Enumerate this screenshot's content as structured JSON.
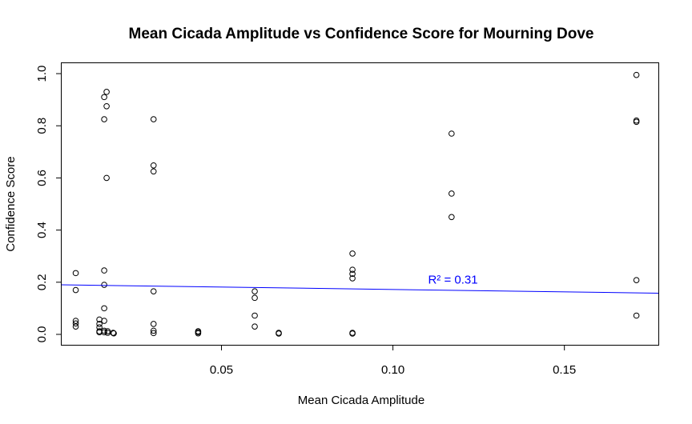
{
  "chart_data": {
    "type": "scatter",
    "title": "Mean Cicada Amplitude vs Confidence Score for Mourning Dove",
    "xlabel": "Mean Cicada Amplitude",
    "ylabel": "Confidence Score",
    "xlim": [
      0.0034,
      0.1774
    ],
    "ylim": [
      -0.04,
      1.04
    ],
    "x_ticks": [
      0.05,
      0.1,
      0.15
    ],
    "x_tick_labels": [
      "0.05",
      "0.10",
      "0.15"
    ],
    "y_ticks": [
      0.0,
      0.2,
      0.4,
      0.6,
      0.8,
      1.0
    ],
    "y_tick_labels": [
      "0.0",
      "0.2",
      "0.4",
      "0.6",
      "0.8",
      "1.0"
    ],
    "points": [
      {
        "x": 0.0075,
        "y": 0.235
      },
      {
        "x": 0.0075,
        "y": 0.17
      },
      {
        "x": 0.0075,
        "y": 0.052
      },
      {
        "x": 0.0075,
        "y": 0.042
      },
      {
        "x": 0.0075,
        "y": 0.03
      },
      {
        "x": 0.0144,
        "y": 0.057
      },
      {
        "x": 0.0144,
        "y": 0.04
      },
      {
        "x": 0.0144,
        "y": 0.027
      },
      {
        "x": 0.0144,
        "y": 0.012
      },
      {
        "x": 0.0144,
        "y": 0.008
      },
      {
        "x": 0.0158,
        "y": 0.91
      },
      {
        "x": 0.0158,
        "y": 0.825
      },
      {
        "x": 0.0158,
        "y": 0.245
      },
      {
        "x": 0.0158,
        "y": 0.19
      },
      {
        "x": 0.0158,
        "y": 0.1
      },
      {
        "x": 0.0158,
        "y": 0.052
      },
      {
        "x": 0.0158,
        "y": 0.014
      },
      {
        "x": 0.0158,
        "y": 0.008
      },
      {
        "x": 0.0165,
        "y": 0.93
      },
      {
        "x": 0.0165,
        "y": 0.875
      },
      {
        "x": 0.0165,
        "y": 0.6
      },
      {
        "x": 0.0168,
        "y": 0.012
      },
      {
        "x": 0.0168,
        "y": 0.006
      },
      {
        "x": 0.0184,
        "y": 0.006
      },
      {
        "x": 0.0186,
        "y": 0.004
      },
      {
        "x": 0.0302,
        "y": 0.825
      },
      {
        "x": 0.0302,
        "y": 0.648
      },
      {
        "x": 0.0302,
        "y": 0.625
      },
      {
        "x": 0.0302,
        "y": 0.165
      },
      {
        "x": 0.0302,
        "y": 0.04
      },
      {
        "x": 0.0302,
        "y": 0.014
      },
      {
        "x": 0.0302,
        "y": 0.005
      },
      {
        "x": 0.0432,
        "y": 0.012
      },
      {
        "x": 0.0432,
        "y": 0.008
      },
      {
        "x": 0.0432,
        "y": 0.004
      },
      {
        "x": 0.0597,
        "y": 0.165
      },
      {
        "x": 0.0597,
        "y": 0.14
      },
      {
        "x": 0.0597,
        "y": 0.072
      },
      {
        "x": 0.0597,
        "y": 0.03
      },
      {
        "x": 0.0667,
        "y": 0.006
      },
      {
        "x": 0.0667,
        "y": 0.003
      },
      {
        "x": 0.0882,
        "y": 0.31
      },
      {
        "x": 0.0882,
        "y": 0.248
      },
      {
        "x": 0.0882,
        "y": 0.232
      },
      {
        "x": 0.0882,
        "y": 0.215
      },
      {
        "x": 0.0882,
        "y": 0.006
      },
      {
        "x": 0.0882,
        "y": 0.003
      },
      {
        "x": 0.1171,
        "y": 0.77
      },
      {
        "x": 0.1171,
        "y": 0.54
      },
      {
        "x": 0.1171,
        "y": 0.45
      },
      {
        "x": 0.171,
        "y": 0.995
      },
      {
        "x": 0.171,
        "y": 0.82
      },
      {
        "x": 0.171,
        "y": 0.815
      },
      {
        "x": 0.171,
        "y": 0.208
      },
      {
        "x": 0.171,
        "y": 0.072
      }
    ],
    "regression_line": {
      "x": [
        0.0034,
        0.1774
      ],
      "y": [
        0.19,
        0.158
      ],
      "color": "#0000ff"
    },
    "annotation": {
      "text": "R² = 0.31",
      "x": 0.1175,
      "y": 0.21,
      "color": "#0000ff"
    },
    "grid": false,
    "legend": "none"
  }
}
